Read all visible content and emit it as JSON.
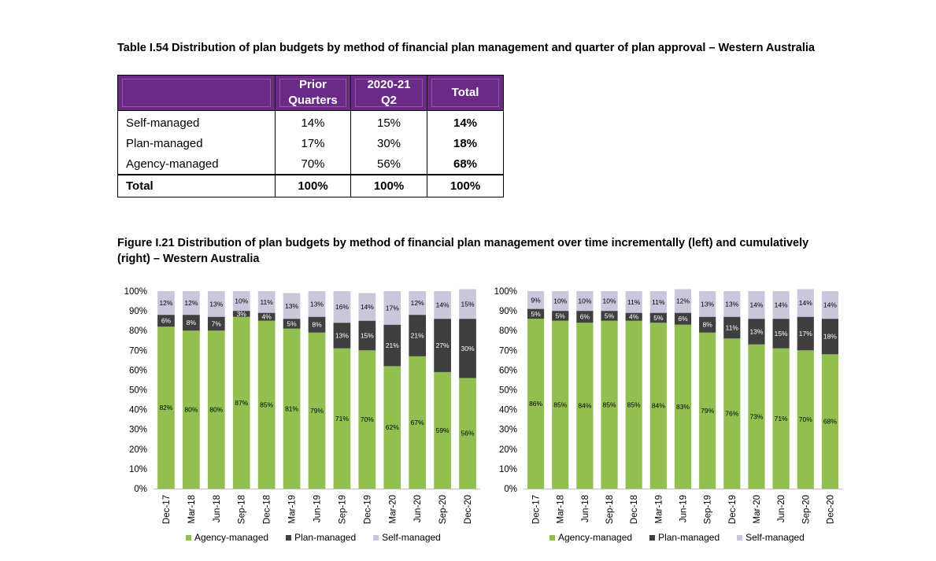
{
  "table": {
    "title": "Table I.54 Distribution of plan budgets by method of financial plan management and quarter of plan approval – Western Australia",
    "headers": [
      "",
      "Prior Quarters",
      "2020-21 Q2",
      "Total"
    ],
    "header_lines": [
      [
        ""
      ],
      [
        "Prior",
        "Quarters"
      ],
      [
        "2020-21",
        "Q2"
      ],
      [
        "Total"
      ]
    ],
    "rows": [
      {
        "label": "Self-managed",
        "prior": "14%",
        "q2": "15%",
        "total": "14%"
      },
      {
        "label": "Plan-managed",
        "prior": "17%",
        "q2": "30%",
        "total": "18%"
      },
      {
        "label": "Agency-managed",
        "prior": "70%",
        "q2": "56%",
        "total": "68%"
      }
    ],
    "total_row": {
      "label": "Total",
      "prior": "100%",
      "q2": "100%",
      "total": "100%"
    }
  },
  "figure": {
    "title": "Figure I.21 Distribution of plan budgets by method of financial plan management over time incrementally (left) and cumulatively (right) – Western Australia"
  },
  "colors": {
    "agency": "#92c050",
    "plan": "#3f3f3f",
    "self": "#ccc6dd",
    "header_purple": "#6a2a86"
  },
  "chart_data": [
    {
      "type": "bar",
      "stacked": true,
      "categories": [
        "Dec-17",
        "Mar-18",
        "Jun-18",
        "Sep-18",
        "Dec-18",
        "Mar-19",
        "Jun-19",
        "Sep-19",
        "Dec-19",
        "Mar-20",
        "Jun-20",
        "Sep-20",
        "Dec-20"
      ],
      "series": [
        {
          "name": "Agency-managed",
          "values": [
            82,
            80,
            80,
            87,
            85,
            81,
            79,
            71,
            70,
            62,
            67,
            59,
            56
          ]
        },
        {
          "name": "Plan-managed",
          "values": [
            6,
            8,
            7,
            3,
            4,
            5,
            8,
            13,
            15,
            21,
            21,
            27,
            30
          ]
        },
        {
          "name": "Self-managed",
          "values": [
            12,
            12,
            13,
            10,
            11,
            13,
            13,
            16,
            14,
            17,
            12,
            14,
            15
          ]
        }
      ],
      "yticks": [
        "0%",
        "10%",
        "20%",
        "30%",
        "40%",
        "50%",
        "60%",
        "70%",
        "80%",
        "90%",
        "100%"
      ],
      "ylim": [
        0,
        100
      ],
      "legend": "bottom"
    },
    {
      "type": "bar",
      "stacked": true,
      "categories": [
        "Dec-17",
        "Mar-18",
        "Jun-18",
        "Sep-18",
        "Dec-18",
        "Mar-19",
        "Jun-19",
        "Sep-19",
        "Dec-19",
        "Mar-20",
        "Jun-20",
        "Sep-20",
        "Dec-20"
      ],
      "series": [
        {
          "name": "Agency-managed",
          "values": [
            86,
            85,
            84,
            85,
            85,
            84,
            83,
            79,
            76,
            73,
            71,
            70,
            68
          ]
        },
        {
          "name": "Plan-managed",
          "values": [
            5,
            5,
            6,
            5,
            4,
            5,
            6,
            8,
            11,
            13,
            15,
            17,
            18
          ]
        },
        {
          "name": "Self-managed",
          "values": [
            9,
            10,
            10,
            10,
            11,
            11,
            12,
            13,
            13,
            14,
            14,
            14,
            14
          ]
        }
      ],
      "yticks": [
        "0%",
        "10%",
        "20%",
        "30%",
        "40%",
        "50%",
        "60%",
        "70%",
        "80%",
        "90%",
        "100%"
      ],
      "ylim": [
        0,
        100
      ],
      "legend": "bottom"
    }
  ]
}
